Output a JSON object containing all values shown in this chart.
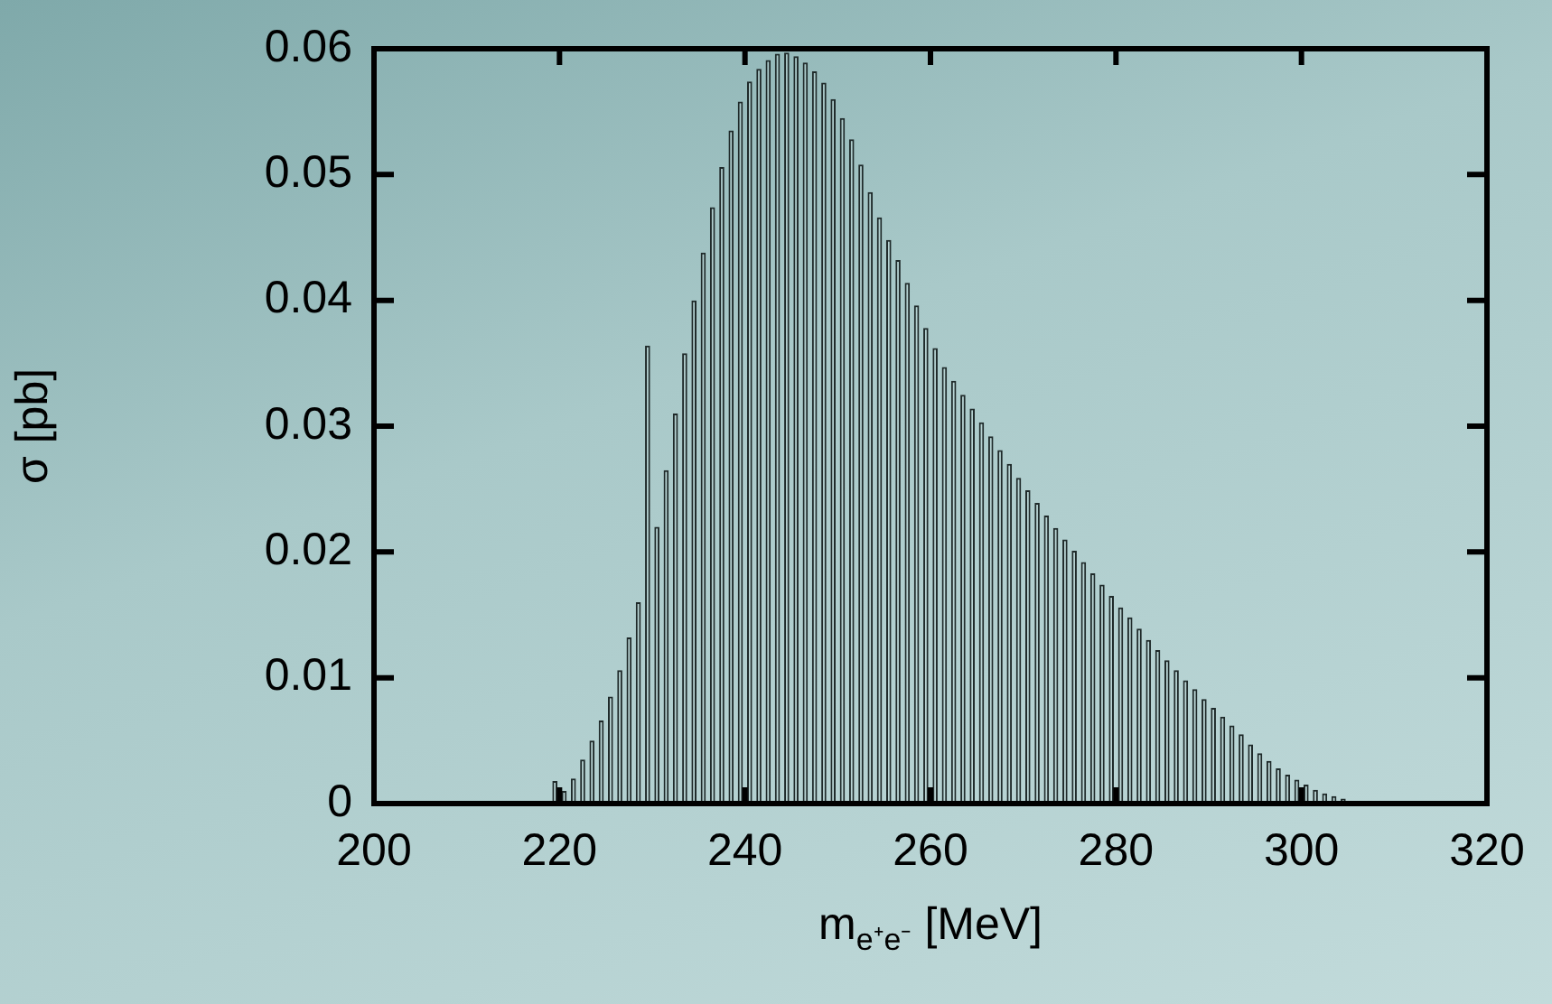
{
  "chart_data": {
    "type": "histogram",
    "xlabel": "m$_{e⁺e⁻}$ [MeV]",
    "ylabel": "σ [pb]",
    "bins": [
      217,
      218,
      219,
      220,
      221,
      222,
      223,
      224,
      225,
      226,
      227,
      228,
      229,
      230,
      231,
      232,
      233,
      234,
      235,
      236,
      237,
      238,
      239,
      240,
      241,
      242,
      243,
      244,
      245,
      246,
      247,
      248,
      249,
      250,
      251,
      252,
      253,
      254,
      255,
      256,
      257,
      258,
      259,
      260,
      261,
      262,
      263,
      264,
      265,
      266,
      267,
      268,
      269,
      270,
      271,
      272,
      273,
      274,
      275,
      276,
      277,
      278,
      279,
      280,
      281,
      282,
      283,
      284,
      285,
      286,
      287,
      288,
      289,
      290,
      291,
      292,
      293,
      294,
      295,
      296,
      297,
      298,
      299,
      300,
      301,
      302,
      303,
      304,
      305,
      306,
      307,
      308
    ],
    "values": [
      0.0001,
      0.0002,
      0.0018,
      0.001,
      0.002,
      0.0035,
      0.005,
      0.0066,
      0.0085,
      0.0106,
      0.0132,
      0.016,
      0.0364,
      0.022,
      0.0265,
      0.031,
      0.0358,
      0.04,
      0.0438,
      0.0474,
      0.0506,
      0.0535,
      0.0558,
      0.0574,
      0.0584,
      0.0591,
      0.0596,
      0.0597,
      0.0594,
      0.0589,
      0.0582,
      0.0573,
      0.056,
      0.0545,
      0.0528,
      0.0508,
      0.0486,
      0.0466,
      0.0448,
      0.0432,
      0.0414,
      0.0396,
      0.0378,
      0.0362,
      0.0347,
      0.0336,
      0.0325,
      0.0314,
      0.0303,
      0.0292,
      0.0281,
      0.027,
      0.0259,
      0.0249,
      0.0239,
      0.0229,
      0.0219,
      0.021,
      0.0201,
      0.0192,
      0.0183,
      0.0174,
      0.0165,
      0.0156,
      0.0148,
      0.0139,
      0.013,
      0.0122,
      0.0114,
      0.0106,
      0.0098,
      0.0091,
      0.0083,
      0.0076,
      0.0069,
      0.0062,
      0.0055,
      0.0047,
      0.004,
      0.0034,
      0.0028,
      0.0023,
      0.0019,
      0.0015,
      0.0011,
      0.0008,
      0.0006,
      0.0004,
      0.0002,
      0.0001,
      0.0001
    ],
    "color": "#1f2a2a",
    "xlim": [
      200,
      320
    ],
    "xticks": [
      200,
      220,
      240,
      260,
      280,
      300,
      320
    ],
    "ylim": [
      0,
      0.06
    ],
    "yticks": [
      0,
      0.01,
      0.02,
      0.03,
      0.04,
      0.05,
      0.06
    ],
    "legend": false
  }
}
